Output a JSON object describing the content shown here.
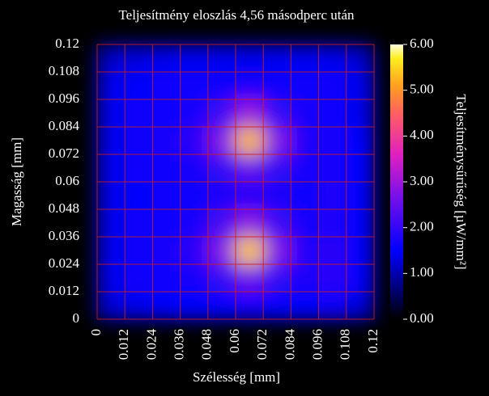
{
  "chart_data": {
    "type": "heatmap",
    "title": "Teljesítmény eloszlás 4,56 másodperc után",
    "x_label": "Szélesség [mm]",
    "y_label": "Magasság [mm]",
    "colorbar_label": "Teljesítménysűrűség [µW/mm²]",
    "xlim": [
      0,
      0.12
    ],
    "ylim": [
      0,
      0.12
    ],
    "xticks": [
      0,
      0.012,
      0.024,
      0.036,
      0.048,
      0.06,
      0.072,
      0.084,
      0.096,
      0.108,
      0.12
    ],
    "yticks": [
      0,
      0.012,
      0.024,
      0.036,
      0.048,
      0.06,
      0.072,
      0.084,
      0.096,
      0.108,
      0.12
    ],
    "zlim": [
      0,
      6
    ],
    "zticks": [
      {
        "value": 0,
        "label": "0.00"
      },
      {
        "value": 1,
        "label": "1.00"
      },
      {
        "value": 2,
        "label": "2.00"
      },
      {
        "value": 3,
        "label": "3.00"
      },
      {
        "value": 4,
        "label": "4.00"
      },
      {
        "value": 5,
        "label": "5.00"
      },
      {
        "value": 6,
        "label": "6.00"
      }
    ],
    "colorscale": [
      [
        0,
        "#000000"
      ],
      [
        0.12,
        "#000080"
      ],
      [
        0.25,
        "#0000ff"
      ],
      [
        0.45,
        "#7a10e8"
      ],
      [
        0.6,
        "#e020c0"
      ],
      [
        0.75,
        "#ff6060"
      ],
      [
        0.85,
        "#ffa020"
      ],
      [
        0.95,
        "#ffee20"
      ],
      [
        1,
        "#ffffe0"
      ]
    ],
    "grid": true,
    "grid_color": "#cc2020",
    "z": [
      [
        1.3,
        1.4,
        1.5,
        1.5,
        1.5,
        1.6,
        1.5,
        1.5,
        1.6,
        1.3
      ],
      [
        1.4,
        1.6,
        1.6,
        1.7,
        2.0,
        2.6,
        2.0,
        1.7,
        1.9,
        1.5
      ],
      [
        1.4,
        1.6,
        1.7,
        1.9,
        2.8,
        5.4,
        2.8,
        1.8,
        1.9,
        1.5
      ],
      [
        1.4,
        1.6,
        1.6,
        1.7,
        2.2,
        2.9,
        2.1,
        1.7,
        1.8,
        1.5
      ],
      [
        1.4,
        1.5,
        1.6,
        1.6,
        1.7,
        1.8,
        1.7,
        1.6,
        1.8,
        1.5
      ],
      [
        1.4,
        1.6,
        1.6,
        1.7,
        2.0,
        2.5,
        2.0,
        1.7,
        1.7,
        1.5
      ],
      [
        1.4,
        1.6,
        1.7,
        1.9,
        2.8,
        5.3,
        2.8,
        1.8,
        1.7,
        1.5
      ],
      [
        1.4,
        1.6,
        1.6,
        1.7,
        2.1,
        3.0,
        2.0,
        1.7,
        1.6,
        1.4
      ],
      [
        1.4,
        1.5,
        1.6,
        1.6,
        1.6,
        1.7,
        1.6,
        1.6,
        1.6,
        1.4
      ],
      [
        1.2,
        1.3,
        1.4,
        1.4,
        1.4,
        1.4,
        1.4,
        1.4,
        1.4,
        1.2
      ]
    ]
  }
}
